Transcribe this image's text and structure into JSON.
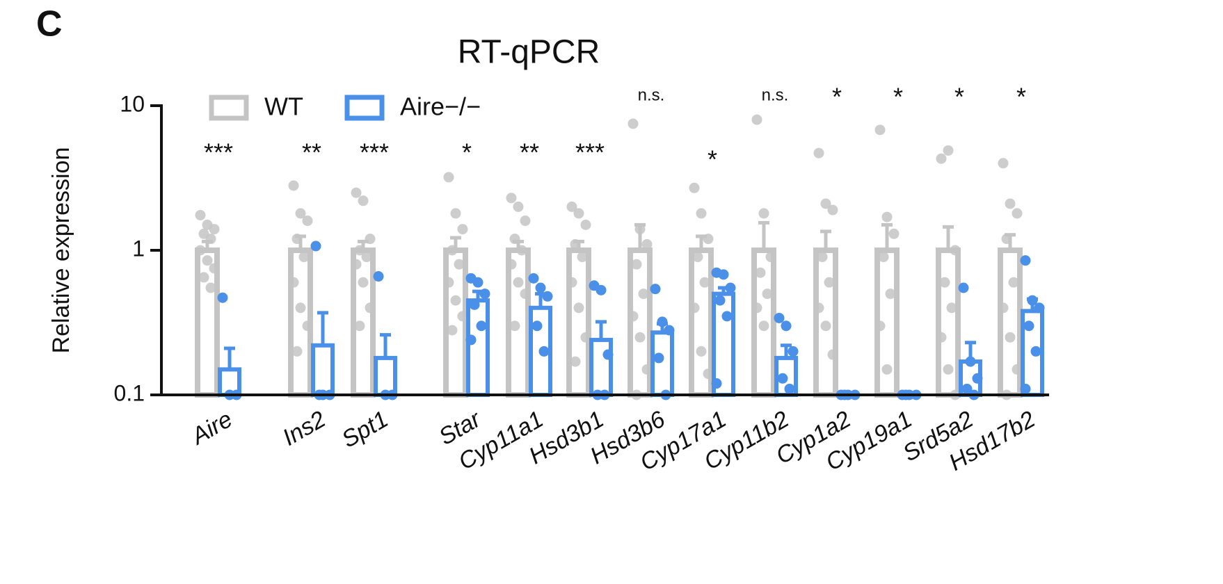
{
  "panel_label": "C",
  "chart_data": {
    "type": "bar",
    "title": "RT-qPCR",
    "ylabel": "Relative expression",
    "log_scale": true,
    "ylim": [
      0.1,
      10
    ],
    "yticks": [
      0.1,
      1,
      10
    ],
    "categories": [
      "Aire",
      "Ins2",
      "Spt1",
      "Star",
      "Cyp11a1",
      "Hsd3b1",
      "Hsd3b6",
      "Cyp17a1",
      "Cyp11b2",
      "Cyp1a2",
      "Cyp19a1",
      "Srd5a2",
      "Hsd17b2"
    ],
    "annotations": [
      "***",
      "**",
      "***",
      "*",
      "**",
      "***",
      "n.s.",
      "*",
      "n.s.",
      "*",
      "*",
      "*",
      "*"
    ],
    "legend": "top-left",
    "series": [
      {
        "name": "WT",
        "color": "#c4c4c4",
        "values": [
          1,
          1,
          1,
          1,
          1,
          1,
          1,
          1,
          1,
          1,
          1,
          1,
          1
        ],
        "errors": [
          0.15,
          0.25,
          0.15,
          0.22,
          0.15,
          0.15,
          0.5,
          0.25,
          0.55,
          0.35,
          0.5,
          0.45,
          0.28
        ],
        "points": [
          [
            1.75,
            1.5,
            1.4,
            1.3,
            1.2,
            1.0,
            0.85,
            0.75,
            0.65,
            0.55
          ],
          [
            2.8,
            1.8,
            1.6,
            1.2,
            0.9,
            0.6,
            0.4,
            0.3,
            0.2
          ],
          [
            2.5,
            2.2,
            1.2,
            1.0,
            0.9,
            0.8,
            0.6,
            0.4,
            0.3
          ],
          [
            3.2,
            1.8,
            1.4,
            1.0,
            0.8,
            0.6,
            0.45,
            0.35,
            0.28
          ],
          [
            2.3,
            2.0,
            1.6,
            1.2,
            1.0,
            0.8,
            0.6,
            0.5,
            0.3
          ],
          [
            2.0,
            1.8,
            1.5,
            1.1,
            0.9,
            0.6,
            0.4,
            0.25,
            0.17
          ],
          [
            7.5,
            1.4,
            1.1,
            0.8,
            0.5,
            0.35,
            0.25,
            0.15,
            0.1
          ],
          [
            2.7,
            1.8,
            1.2,
            0.9,
            0.6,
            0.4,
            0.2,
            0.14
          ],
          [
            8.0,
            1.8,
            0.9,
            0.7,
            0.5,
            0.4,
            0.3
          ],
          [
            4.7,
            2.1,
            1.9,
            0.9,
            0.6,
            0.4,
            0.3,
            0.19
          ],
          [
            6.8,
            1.7,
            1.3,
            0.9,
            0.5,
            0.3,
            0.15
          ],
          [
            4.3,
            4.9,
            1.0,
            0.6,
            0.4,
            0.25,
            0.15,
            0.1
          ],
          [
            4.0,
            2.1,
            1.8,
            1.2,
            0.6,
            0.4,
            0.25,
            0.15,
            0.1
          ]
        ]
      },
      {
        "name": "Aire−/−",
        "color": "#4a8fe8",
        "values": [
          0.15,
          0.22,
          0.18,
          0.45,
          0.4,
          0.24,
          0.27,
          0.5,
          0.18,
          0.1,
          0.1,
          0.17,
          0.38
        ],
        "errors": [
          0.06,
          0.15,
          0.08,
          0.07,
          0.1,
          0.08,
          0.04,
          0.05,
          0.04,
          0,
          0,
          0.06,
          0.08
        ],
        "points": [
          [
            0.47,
            0.1,
            0.1
          ],
          [
            1.07,
            0.1,
            0.1,
            0.1
          ],
          [
            0.66,
            0.1,
            0.1
          ],
          [
            0.64,
            0.6,
            0.5,
            0.42,
            0.3,
            0.24
          ],
          [
            0.64,
            0.55,
            0.48,
            0.3,
            0.2
          ],
          [
            0.57,
            0.53,
            0.19,
            0.1,
            0.1
          ],
          [
            0.54,
            0.32,
            0.28,
            0.18,
            0.1
          ],
          [
            0.7,
            0.68,
            0.55,
            0.45,
            0.35,
            0.12
          ],
          [
            0.34,
            0.3,
            0.2,
            0.13,
            0.11
          ],
          [
            0.1,
            0.1,
            0.1,
            0.1
          ],
          [
            0.1,
            0.1,
            0.1,
            0.1
          ],
          [
            0.55,
            0.17,
            0.13,
            0.11,
            0.1
          ],
          [
            0.85,
            0.45,
            0.4,
            0.3,
            0.2,
            0.11
          ]
        ]
      }
    ]
  }
}
